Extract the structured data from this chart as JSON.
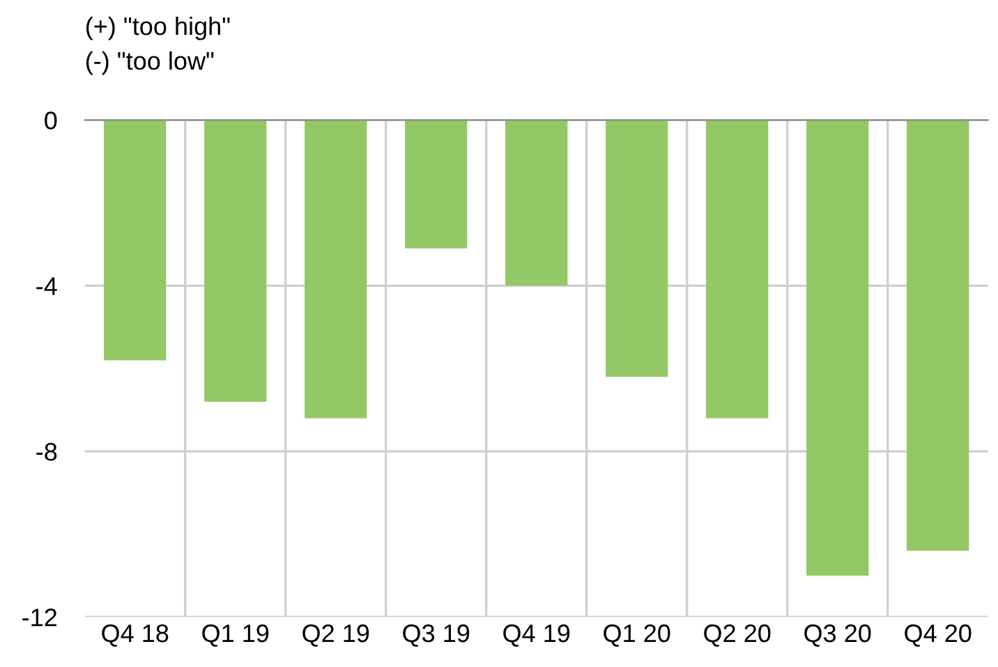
{
  "chart_data": {
    "type": "bar",
    "categories": [
      "Q4 18",
      "Q1 19",
      "Q2 19",
      "Q3 19",
      "Q4 19",
      "Q1 20",
      "Q2 20",
      "Q3 20",
      "Q4 20"
    ],
    "values": [
      -5.8,
      -6.8,
      -7.2,
      -3.1,
      -4.0,
      -6.2,
      -7.2,
      -11.0,
      -10.4
    ],
    "color": "#92c865",
    "ylim": [
      -12,
      0
    ],
    "yticks": [
      0,
      -4,
      -8,
      -12
    ],
    "grid": true,
    "annotations": [
      "(+) \"too high\"",
      "(-) \"too low\""
    ]
  }
}
